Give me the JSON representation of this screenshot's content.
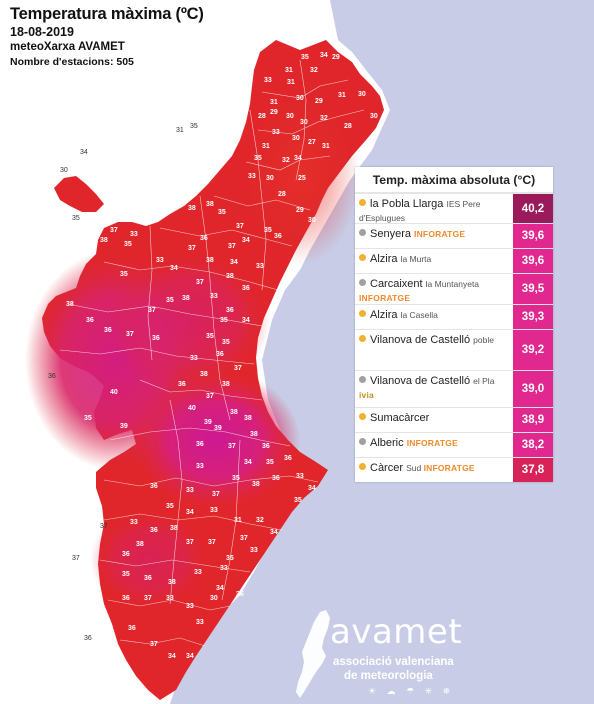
{
  "header": {
    "title": "Temperatura màxima (ºC)",
    "date": "18-08-2019",
    "org": "meteoXarxa AVAMET",
    "stations_label": "Nombre d'estacions: 505"
  },
  "panel": {
    "title": "Temp. màxima absoluta (°C)",
    "rows": [
      {
        "name": "la Pobla Llarga",
        "sub": "IES Pere d'Esplugues",
        "tag": "",
        "value": "40,2",
        "dot": "#f0b030",
        "color": "#9a1a5c"
      },
      {
        "name": "Senyera",
        "sub": "",
        "tag": "INFORATGE",
        "value": "39,6",
        "dot": "#a0a0a0",
        "color": "#e0288f"
      },
      {
        "name": "Alzira",
        "sub": "la Murta",
        "tag": "",
        "value": "39,6",
        "dot": "#f0b030",
        "color": "#e0288f"
      },
      {
        "name": "Carcaixent",
        "sub": "la Muntanyeta",
        "tag": "INFORATGE",
        "value": "39,5",
        "dot": "#a0a0a0",
        "color": "#e0288f"
      },
      {
        "name": "Alzira",
        "sub": "la Casella",
        "tag": "",
        "value": "39,3",
        "dot": "#f0b030",
        "color": "#e0288f"
      },
      {
        "name": "Vilanova de Castelló",
        "sub": "poble",
        "tag": "",
        "value": "39,2",
        "dot": "#f0b030",
        "color": "#e0288f"
      },
      {
        "name": "Vilanova de Castelló",
        "sub": "el Pla",
        "tag": "ivia",
        "value": "39,0",
        "dot": "#a0a0a0",
        "color": "#e0288f"
      },
      {
        "name": "Sumacàrcer",
        "sub": "",
        "tag": "",
        "value": "38,9",
        "dot": "#f0b030",
        "color": "#e0288f"
      },
      {
        "name": "Alberic",
        "sub": "",
        "tag": "INFORATGE",
        "value": "38,2",
        "dot": "#a0a0a0",
        "color": "#e0288f"
      },
      {
        "name": "Càrcer",
        "sub": "Sud",
        "tag": "INFORATGE",
        "value": "37,8",
        "dot": "#f0b030",
        "color": "#d8225a"
      }
    ]
  },
  "logo": {
    "word": "avamet",
    "line1": "associació valenciana",
    "line2": "de meteorologia",
    "icons": "☀ ☁ ☂ ✳ ❄"
  },
  "colors": {
    "sea": "#c8cce6",
    "land_outside": "#ffffff",
    "red": "#e02424",
    "magenta": "#d8207a",
    "accent_tag": "#f08a2a",
    "accent_tag2": "#1a9a9a"
  },
  "map_labels": [
    {
      "t": "31"
    },
    {
      "t": "35"
    },
    {
      "t": "34"
    },
    {
      "t": "29"
    },
    {
      "t": "29"
    },
    {
      "t": "32"
    },
    {
      "t": "33"
    },
    {
      "t": "31"
    },
    {
      "t": "30"
    },
    {
      "t": "29"
    },
    {
      "t": "31"
    },
    {
      "t": "30"
    },
    {
      "t": "31"
    },
    {
      "t": "29"
    },
    {
      "t": "28"
    },
    {
      "t": "30"
    },
    {
      "t": "30"
    },
    {
      "t": "32"
    },
    {
      "t": "28"
    },
    {
      "t": "30"
    },
    {
      "t": "33"
    },
    {
      "t": "30"
    },
    {
      "t": "27"
    },
    {
      "t": "31"
    },
    {
      "t": "31"
    },
    {
      "t": "35"
    },
    {
      "t": "34"
    },
    {
      "t": "32"
    },
    {
      "t": "33"
    },
    {
      "t": "30"
    },
    {
      "t": "25"
    },
    {
      "t": "28"
    },
    {
      "t": "38"
    },
    {
      "t": "38"
    },
    {
      "t": "35"
    },
    {
      "t": "37"
    },
    {
      "t": "35"
    },
    {
      "t": "34"
    },
    {
      "t": "29"
    },
    {
      "t": "30"
    },
    {
      "t": "36"
    },
    {
      "t": "37"
    },
    {
      "t": "36"
    },
    {
      "t": "37"
    },
    {
      "t": "34"
    },
    {
      "t": "33"
    },
    {
      "t": "37"
    },
    {
      "t": "33"
    },
    {
      "t": "38"
    },
    {
      "t": "35"
    },
    {
      "t": "33"
    },
    {
      "t": "35"
    },
    {
      "t": "34"
    },
    {
      "t": "38"
    },
    {
      "t": "38"
    },
    {
      "t": "37"
    },
    {
      "t": "36"
    },
    {
      "t": "33"
    },
    {
      "t": "38"
    },
    {
      "t": "35"
    },
    {
      "t": "37"
    },
    {
      "t": "36"
    },
    {
      "t": "34"
    },
    {
      "t": "35"
    },
    {
      "t": "38"
    },
    {
      "t": "36"
    },
    {
      "t": "36"
    },
    {
      "t": "37"
    },
    {
      "t": "36"
    },
    {
      "t": "35"
    },
    {
      "t": "35"
    },
    {
      "t": "33"
    },
    {
      "t": "40"
    },
    {
      "t": "35"
    },
    {
      "t": "39"
    },
    {
      "t": "36"
    },
    {
      "t": "37"
    },
    {
      "t": "38"
    },
    {
      "t": "36"
    },
    {
      "t": "37"
    },
    {
      "t": "38"
    },
    {
      "t": "40"
    },
    {
      "t": "39"
    },
    {
      "t": "39"
    },
    {
      "t": "38"
    },
    {
      "t": "38"
    },
    {
      "t": "38"
    },
    {
      "t": "36"
    },
    {
      "t": "37"
    },
    {
      "t": "36"
    },
    {
      "t": "34"
    },
    {
      "t": "35"
    },
    {
      "t": "36"
    },
    {
      "t": "33"
    },
    {
      "t": "34"
    },
    {
      "t": "33"
    },
    {
      "t": "36"
    },
    {
      "t": "38"
    },
    {
      "t": "35"
    },
    {
      "t": "37"
    },
    {
      "t": "33"
    },
    {
      "t": "36"
    },
    {
      "t": "35"
    },
    {
      "t": "34"
    },
    {
      "t": "33"
    },
    {
      "t": "31"
    },
    {
      "t": "32"
    },
    {
      "t": "37"
    },
    {
      "t": "34"
    },
    {
      "t": "35"
    },
    {
      "t": "33"
    },
    {
      "t": "36"
    },
    {
      "t": "38"
    },
    {
      "t": "38"
    },
    {
      "t": "36"
    },
    {
      "t": "37"
    },
    {
      "t": "37"
    },
    {
      "t": "35"
    },
    {
      "t": "33"
    },
    {
      "t": "36"
    },
    {
      "t": "38"
    },
    {
      "t": "33"
    },
    {
      "t": "34"
    },
    {
      "t": "35"
    },
    {
      "t": "36"
    },
    {
      "t": "37"
    },
    {
      "t": "33"
    },
    {
      "t": "33"
    },
    {
      "t": "33"
    },
    {
      "t": "36"
    },
    {
      "t": "37"
    },
    {
      "t": "34"
    },
    {
      "t": "34"
    },
    {
      "t": "30"
    },
    {
      "t": "33"
    },
    {
      "t": "36"
    },
    {
      "t": "36"
    },
    {
      "t": "37"
    },
    {
      "t": "36"
    },
    {
      "t": "33"
    },
    {
      "t": "31"
    },
    {
      "t": "31"
    },
    {
      "t": "30"
    }
  ],
  "outside_labels": [
    {
      "t": "31"
    },
    {
      "t": "35"
    },
    {
      "t": "34"
    },
    {
      "t": "30"
    },
    {
      "t": "35"
    },
    {
      "t": "36"
    },
    {
      "t": "37"
    },
    {
      "t": "37"
    },
    {
      "t": "36"
    }
  ]
}
